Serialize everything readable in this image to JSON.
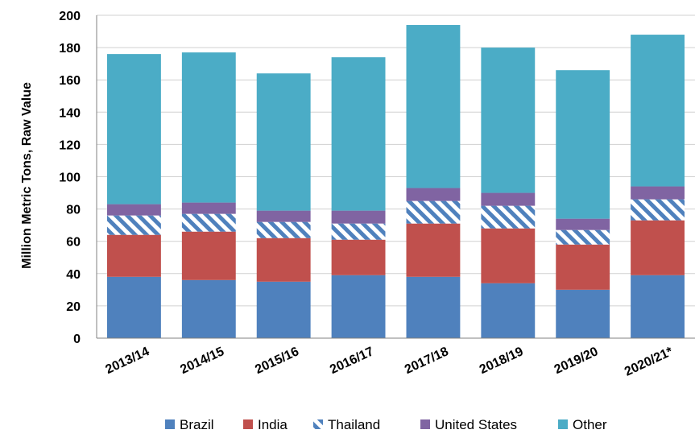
{
  "chart_data": {
    "type": "bar",
    "stacked": true,
    "title": "",
    "ylabel": "Million Metric Tons, Raw Value",
    "xlabel": "",
    "ylim": [
      0,
      200
    ],
    "yticks": [
      0,
      20,
      40,
      60,
      80,
      100,
      120,
      140,
      160,
      180,
      200
    ],
    "grid": "horizontal",
    "legend_position": "bottom",
    "categories": [
      "2013/14",
      "2014/15",
      "2015/16",
      "2016/17",
      "2017/18",
      "2018/19",
      "2019/20",
      "2020/21*"
    ],
    "series": [
      {
        "name": "Brazil",
        "color": "#4F81BD",
        "pattern": "solid",
        "values": [
          38,
          36,
          35,
          39,
          38,
          34,
          30,
          39
        ]
      },
      {
        "name": "India",
        "color": "#C0504D",
        "pattern": "solid",
        "values": [
          26,
          30,
          27,
          22,
          33,
          34,
          28,
          34
        ]
      },
      {
        "name": "Thailand",
        "color": "#4F81BD",
        "pattern": "diagonal-stripes",
        "values": [
          12,
          11,
          10,
          10,
          14,
          14,
          9,
          13
        ]
      },
      {
        "name": "United States",
        "color": "#8064A2",
        "pattern": "solid",
        "values": [
          7,
          7,
          7,
          8,
          8,
          8,
          7,
          8
        ]
      },
      {
        "name": "Other",
        "color": "#4BACC6",
        "pattern": "solid",
        "values": [
          93,
          93,
          85,
          95,
          101,
          90,
          92,
          94
        ]
      }
    ]
  }
}
